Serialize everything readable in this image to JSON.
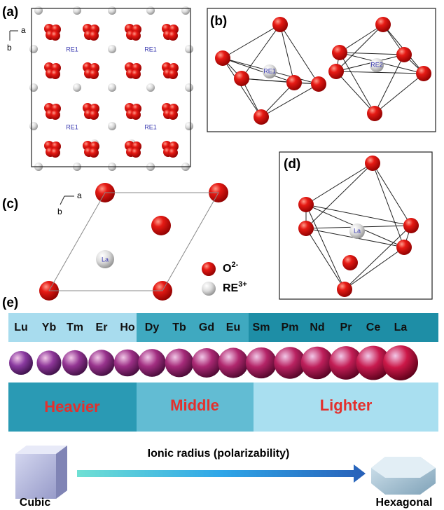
{
  "panels": {
    "a": {
      "label": "(a)",
      "axis_a": "a",
      "axis_b": "b",
      "site_labels": [
        "RE1",
        "RE1",
        "RE1",
        "RE1"
      ]
    },
    "b": {
      "label": "(b)",
      "site_labels": [
        "RE1",
        "RE2"
      ]
    },
    "c": {
      "label": "(c)",
      "axis_a": "a",
      "axis_b": "b",
      "site_label": "La"
    },
    "d": {
      "label": "(d)",
      "site_label": "La"
    },
    "e": {
      "label": "(e)"
    }
  },
  "legend": [
    {
      "symbol": "O",
      "charge": "2-"
    },
    {
      "symbol": "RE",
      "charge": "3+"
    }
  ],
  "elements": [
    "Lu",
    "Yb",
    "Tm",
    "Er",
    "Ho",
    "Dy",
    "Tb",
    "Gd",
    "Eu",
    "Sm",
    "Pm",
    "Nd",
    "Pr",
    "Ce",
    "La"
  ],
  "groups": [
    "Heavier",
    "Middle",
    "Lighter"
  ],
  "arrow_label": "Ionic radius (polarizability)",
  "structures": [
    "Cubic",
    "Hexagonal"
  ]
}
